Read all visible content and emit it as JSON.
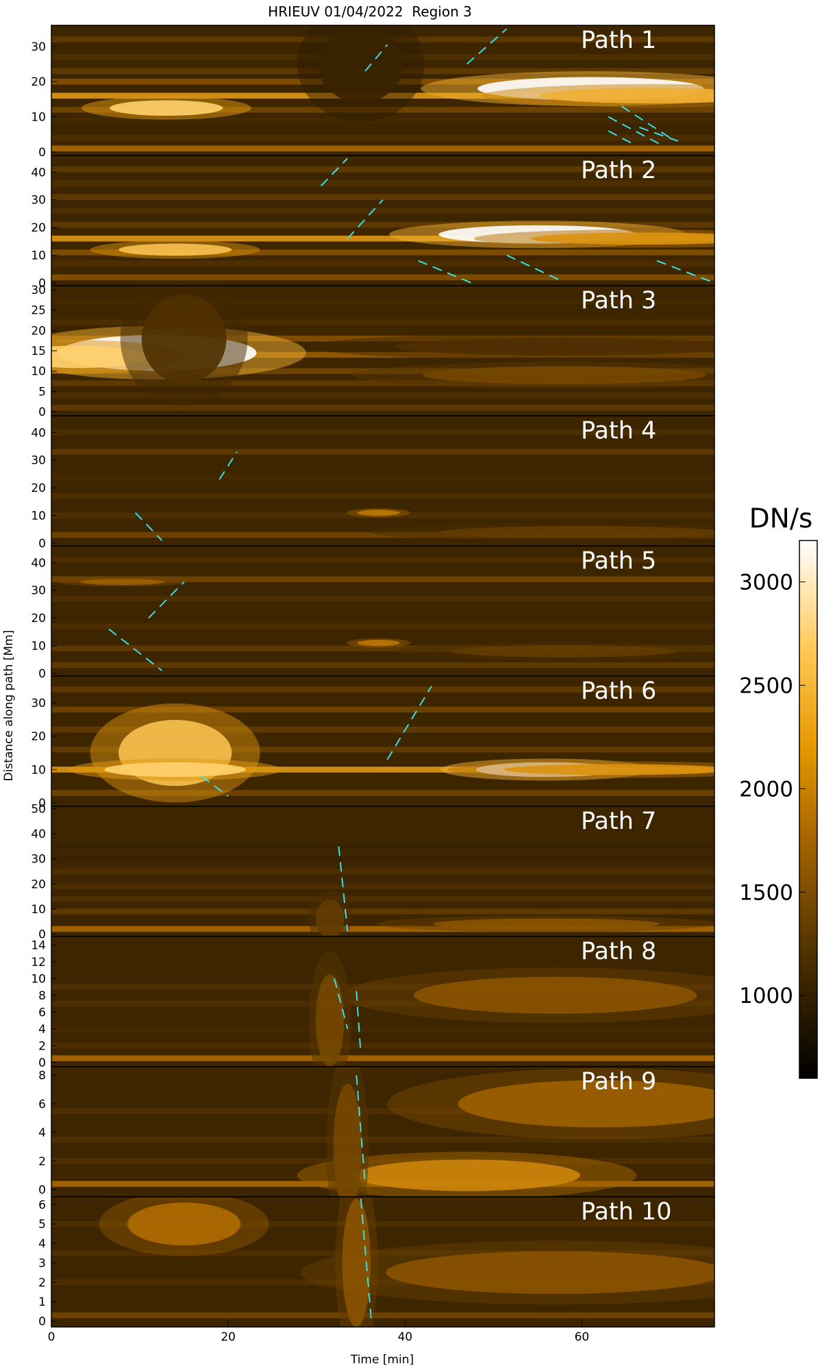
{
  "chart_data": {
    "type": "heatmap",
    "title": "HRIEUV 01/04/2022  Region 3",
    "xlabel": "Time [min]",
    "ylabel": "Distance along path [Mm]",
    "x_ticks": [
      "0",
      "20",
      "40",
      "60"
    ],
    "xlim": [
      0,
      75
    ],
    "colorbar": {
      "label": "DN/s",
      "range": [
        600,
        3200
      ],
      "ticks": [
        "3000",
        "2500",
        "2000",
        "1500",
        "1000"
      ],
      "tick_values": [
        3000,
        2500,
        2000,
        1500,
        1000
      ]
    },
    "panels": [
      {
        "label": "Path   1",
        "ylim": [
          -1,
          36
        ],
        "y_ticks": [
          0,
          10,
          20,
          30
        ],
        "bands": [
          [
            1,
            0.55
          ],
          [
            4,
            0.3
          ],
          [
            9,
            0.25
          ],
          [
            12,
            0.4
          ],
          [
            16,
            0.75
          ],
          [
            20,
            0.45
          ],
          [
            23,
            0.35
          ],
          [
            27,
            0.3
          ],
          [
            32,
            0.35
          ]
        ],
        "blobs": [
          [
            13,
            12.5,
            4,
            2,
            0.9
          ],
          [
            61,
            18,
            8,
            3,
            1.0
          ],
          [
            68,
            16,
            8,
            2,
            0.8
          ],
          [
            35,
            25,
            3,
            10,
            0.2
          ]
        ],
        "dashes": [
          [
            [
              35.5,
              23
            ],
            [
              38,
              30.5
            ]
          ],
          [
            [
              47,
              25
            ],
            [
              51.5,
              35
            ]
          ],
          [
            [
              64.5,
              13
            ],
            [
              70,
              4
            ]
          ],
          [
            [
              63,
              10
            ],
            [
              69,
              2
            ]
          ],
          [
            [
              63,
              6
            ],
            [
              66,
              2
            ]
          ],
          [
            [
              66.5,
              7
            ],
            [
              71,
              3
            ]
          ]
        ]
      },
      {
        "label": "Path   2",
        "ylim": [
          -1,
          46
        ],
        "y_ticks": [
          0,
          10,
          20,
          30,
          40
        ],
        "bands": [
          [
            2,
            0.45
          ],
          [
            7,
            0.3
          ],
          [
            11,
            0.45
          ],
          [
            16,
            0.75
          ],
          [
            21,
            0.35
          ],
          [
            26,
            0.3
          ],
          [
            31,
            0.35
          ],
          [
            36,
            0.3
          ],
          [
            41,
            0.35
          ]
        ],
        "blobs": [
          [
            14,
            12,
            4,
            2,
            0.85
          ],
          [
            55,
            17.5,
            7,
            3,
            1.0
          ],
          [
            67,
            16,
            8,
            2,
            0.7
          ]
        ],
        "dashes": [
          [
            [
              30.5,
              35
            ],
            [
              33.5,
              45
            ]
          ],
          [
            [
              33.5,
              16
            ],
            [
              37.5,
              30
            ]
          ],
          [
            [
              41.5,
              8
            ],
            [
              47.5,
              0
            ]
          ],
          [
            [
              51.5,
              10
            ],
            [
              57.5,
              1
            ]
          ],
          [
            [
              68.5,
              8
            ],
            [
              75,
              0
            ]
          ]
        ]
      },
      {
        "label": "Path   3",
        "ylim": [
          -1,
          31
        ],
        "y_ticks": [
          0,
          5,
          10,
          15,
          20,
          25,
          30
        ],
        "bands": [
          [
            1,
            0.35
          ],
          [
            4,
            0.3
          ],
          [
            7,
            0.35
          ],
          [
            10,
            0.4
          ],
          [
            14,
            0.5
          ],
          [
            18,
            0.45
          ],
          [
            22,
            0.3
          ],
          [
            27,
            0.25
          ]
        ],
        "blobs": [
          [
            12,
            14.5,
            7,
            4,
            1.0
          ],
          [
            3,
            13.5,
            5,
            2.5,
            0.9
          ],
          [
            15,
            18,
            3,
            10,
            0.3
          ],
          [
            58,
            9,
            10,
            2,
            0.4
          ],
          [
            58,
            16,
            12,
            2,
            0.3
          ]
        ],
        "dashes": []
      },
      {
        "label": "Path   4",
        "ylim": [
          -1,
          46
        ],
        "y_ticks": [
          0,
          10,
          20,
          30,
          40
        ],
        "bands": [
          [
            3,
            0.4
          ],
          [
            10,
            0.3
          ],
          [
            17,
            0.3
          ],
          [
            24,
            0.25
          ],
          [
            33,
            0.35
          ],
          [
            40,
            0.3
          ]
        ],
        "blobs": [
          [
            37,
            11,
            1.5,
            1,
            0.6
          ],
          [
            60,
            4,
            10,
            2,
            0.35
          ]
        ],
        "dashes": [
          [
            [
              19,
              23
            ],
            [
              21,
              33
            ]
          ],
          [
            [
              9.5,
              11
            ],
            [
              12.5,
              1
            ]
          ]
        ]
      },
      {
        "label": "Path   5",
        "ylim": [
          -1,
          46
        ],
        "y_ticks": [
          0,
          10,
          20,
          30,
          40
        ],
        "bands": [
          [
            3,
            0.35
          ],
          [
            9,
            0.35
          ],
          [
            17,
            0.3
          ],
          [
            27,
            0.3
          ],
          [
            34,
            0.4
          ],
          [
            41,
            0.3
          ]
        ],
        "blobs": [
          [
            37,
            11,
            1.5,
            1,
            0.6
          ],
          [
            58,
            8,
            8,
            2,
            0.35
          ],
          [
            8,
            33,
            3,
            1,
            0.5
          ]
        ],
        "dashes": [
          [
            [
              11,
              20
            ],
            [
              15,
              33
            ]
          ],
          [
            [
              6.5,
              16
            ],
            [
              12.5,
              1
            ]
          ]
        ]
      },
      {
        "label": "Path   6",
        "ylim": [
          -1,
          38
        ],
        "y_ticks": [
          0,
          10,
          20,
          30
        ],
        "bands": [
          [
            3,
            0.4
          ],
          [
            10,
            0.75
          ],
          [
            16,
            0.35
          ],
          [
            22,
            0.35
          ],
          [
            28,
            0.4
          ],
          [
            34,
            0.35
          ]
        ],
        "blobs": [
          [
            14,
            15,
            4,
            9,
            0.85
          ],
          [
            14,
            10,
            5,
            2,
            0.9
          ],
          [
            56,
            10,
            5,
            2,
            1.0
          ],
          [
            64,
            10,
            8,
            1.5,
            0.7
          ]
        ],
        "dashes": [
          [
            [
              38,
              13
            ],
            [
              43,
              35
            ]
          ],
          [
            [
              17,
              8
            ],
            [
              20,
              2
            ]
          ]
        ]
      },
      {
        "label": "Path   7",
        "ylim": [
          -1,
          51
        ],
        "y_ticks": [
          0,
          10,
          20,
          30,
          40,
          50
        ],
        "bands": [
          [
            2,
            0.55
          ],
          [
            9,
            0.35
          ],
          [
            14,
            0.3
          ],
          [
            19,
            0.3
          ],
          [
            25,
            0.3
          ],
          [
            30,
            0.2
          ],
          [
            35,
            0.2
          ]
        ],
        "blobs": [
          [
            56,
            4,
            8,
            2,
            0.45
          ],
          [
            31.5,
            6,
            1,
            7,
            0.35
          ]
        ],
        "dashes": [
          [
            [
              32.5,
              35
            ],
            [
              33.5,
              1
            ]
          ]
        ]
      },
      {
        "label": "Path   8",
        "ylim": [
          -0.5,
          15
        ],
        "y_ticks": [
          0,
          2,
          4,
          6,
          8,
          10,
          12,
          14
        ],
        "bands": [
          [
            0.5,
            0.55
          ],
          [
            2,
            0.3
          ],
          [
            4,
            0.25
          ],
          [
            7,
            0.3
          ],
          [
            9,
            0.3
          ]
        ],
        "blobs": [
          [
            57,
            8,
            10,
            2,
            0.45
          ],
          [
            31.5,
            5,
            1,
            5,
            0.4
          ]
        ],
        "dashes": [
          [
            [
              32,
              10
            ],
            [
              33.5,
              4
            ]
          ],
          [
            [
              34.5,
              8.5
            ],
            [
              35,
              1
            ]
          ]
        ]
      },
      {
        "label": "Path   9",
        "ylim": [
          -0.5,
          8.6
        ],
        "y_ticks": [
          0,
          2,
          4,
          6,
          8
        ],
        "bands": [
          [
            0.4,
            0.55
          ],
          [
            2,
            0.3
          ],
          [
            3.5,
            0.3
          ],
          [
            5.5,
            0.3
          ]
        ],
        "blobs": [
          [
            47,
            1,
            8,
            1,
            0.65
          ],
          [
            62,
            6,
            10,
            1.5,
            0.5
          ],
          [
            33.5,
            3,
            1,
            4,
            0.4
          ]
        ],
        "dashes": [
          [
            [
              34.5,
              8
            ],
            [
              35.5,
              0.3
            ]
          ]
        ]
      },
      {
        "label": "Path  10",
        "ylim": [
          -0.3,
          6.4
        ],
        "y_ticks": [
          0,
          1,
          2,
          3,
          4,
          5,
          6
        ],
        "bands": [
          [
            0.3,
            0.4
          ],
          [
            2,
            0.3
          ],
          [
            3.5,
            0.3
          ],
          [
            5,
            0.3
          ]
        ],
        "blobs": [
          [
            15,
            5,
            4,
            1,
            0.55
          ],
          [
            57,
            2.5,
            12,
            1,
            0.45
          ],
          [
            34.5,
            3,
            1,
            3,
            0.45
          ]
        ],
        "dashes": [
          [
            [
              35,
              6.3
            ],
            [
              36.2,
              0
            ]
          ]
        ]
      }
    ]
  }
}
